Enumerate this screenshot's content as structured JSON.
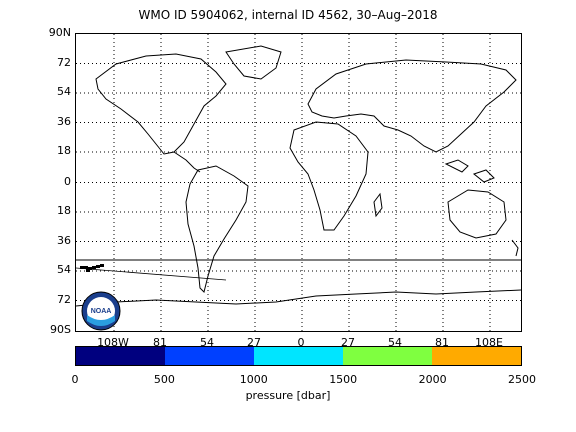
{
  "title": "WMO ID 5904062, internal ID 4562, 30–Aug–2018",
  "lat_labels": [
    "90N",
    "72",
    "54",
    "36",
    "18",
    "0",
    "18",
    "36",
    "54",
    "72",
    "90S"
  ],
  "lon_labels": [
    "108W",
    "81",
    "54",
    "27",
    "0",
    "27",
    "54",
    "81",
    "108E"
  ],
  "colorbar": {
    "ticks": [
      "0",
      "500",
      "1000",
      "1500",
      "2000",
      "2500"
    ],
    "label": "pressure [dbar]",
    "colors": [
      "#00007f",
      "#0040ff",
      "#00e5ff",
      "#7fff40",
      "#ffaa00"
    ]
  },
  "logo": {
    "text": "NOAA"
  }
}
